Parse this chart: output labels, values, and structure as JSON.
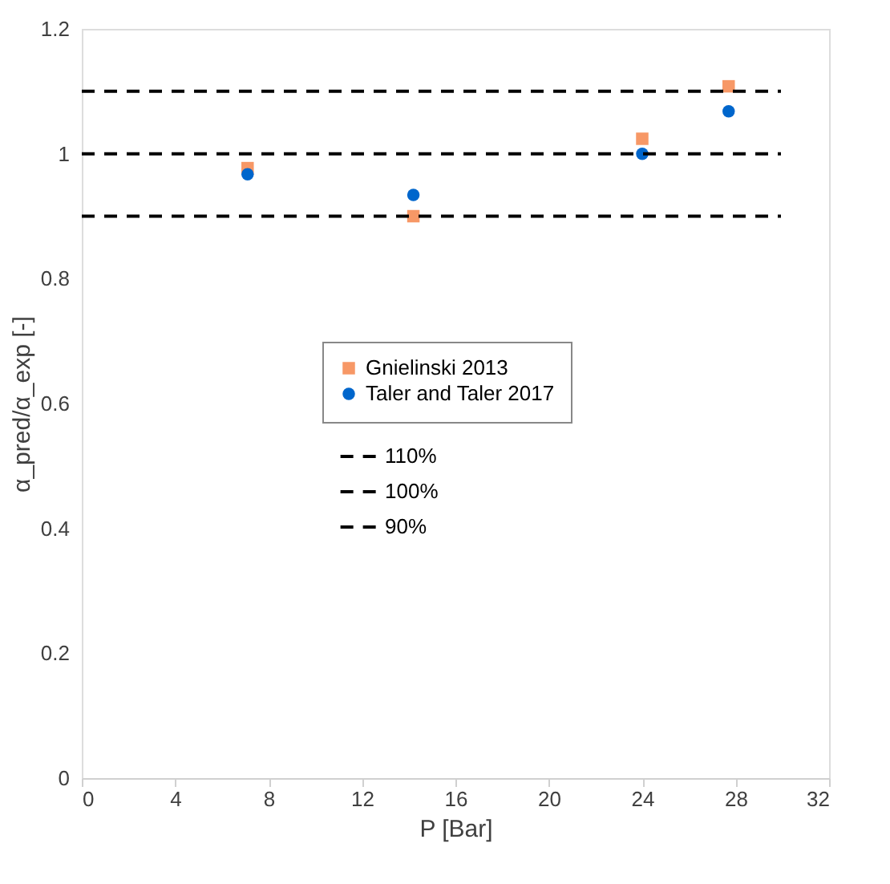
{
  "chart_data": {
    "type": "scatter",
    "xlabel": "P [Bar]",
    "ylabel": "α_pred/α_exp [-]",
    "x": [
      7.1,
      14.2,
      24.0,
      27.7
    ],
    "series": [
      {
        "name": "Gnielinski 2013",
        "color": "#f79866",
        "marker": "square",
        "values": [
          0.977,
          0.9,
          1.024,
          1.108
        ]
      },
      {
        "name": "Taler and Taler 2017",
        "color": "#0066cc",
        "marker": "circle",
        "values": [
          0.967,
          0.934,
          1.0,
          1.068
        ]
      }
    ],
    "ref_lines": [
      {
        "axis": "y",
        "value": 1.1,
        "label": "110%",
        "color": "#000000",
        "line_style": "dashed"
      },
      {
        "axis": "y",
        "value": 1.0,
        "label": "100%",
        "color": "#000000",
        "line_style": "dashed"
      },
      {
        "axis": "y",
        "value": 0.9,
        "label": "90%",
        "color": "#000000",
        "line_style": "dashed"
      }
    ],
    "xlim": [
      0,
      32
    ],
    "xticks": [
      0,
      4,
      8,
      12,
      16,
      20,
      24,
      28,
      32
    ],
    "ylim": [
      0,
      1.2
    ],
    "yticks": [
      0,
      0.2,
      0.4,
      0.6,
      0.8,
      1,
      1.2
    ],
    "grid": false,
    "legend": "center"
  }
}
